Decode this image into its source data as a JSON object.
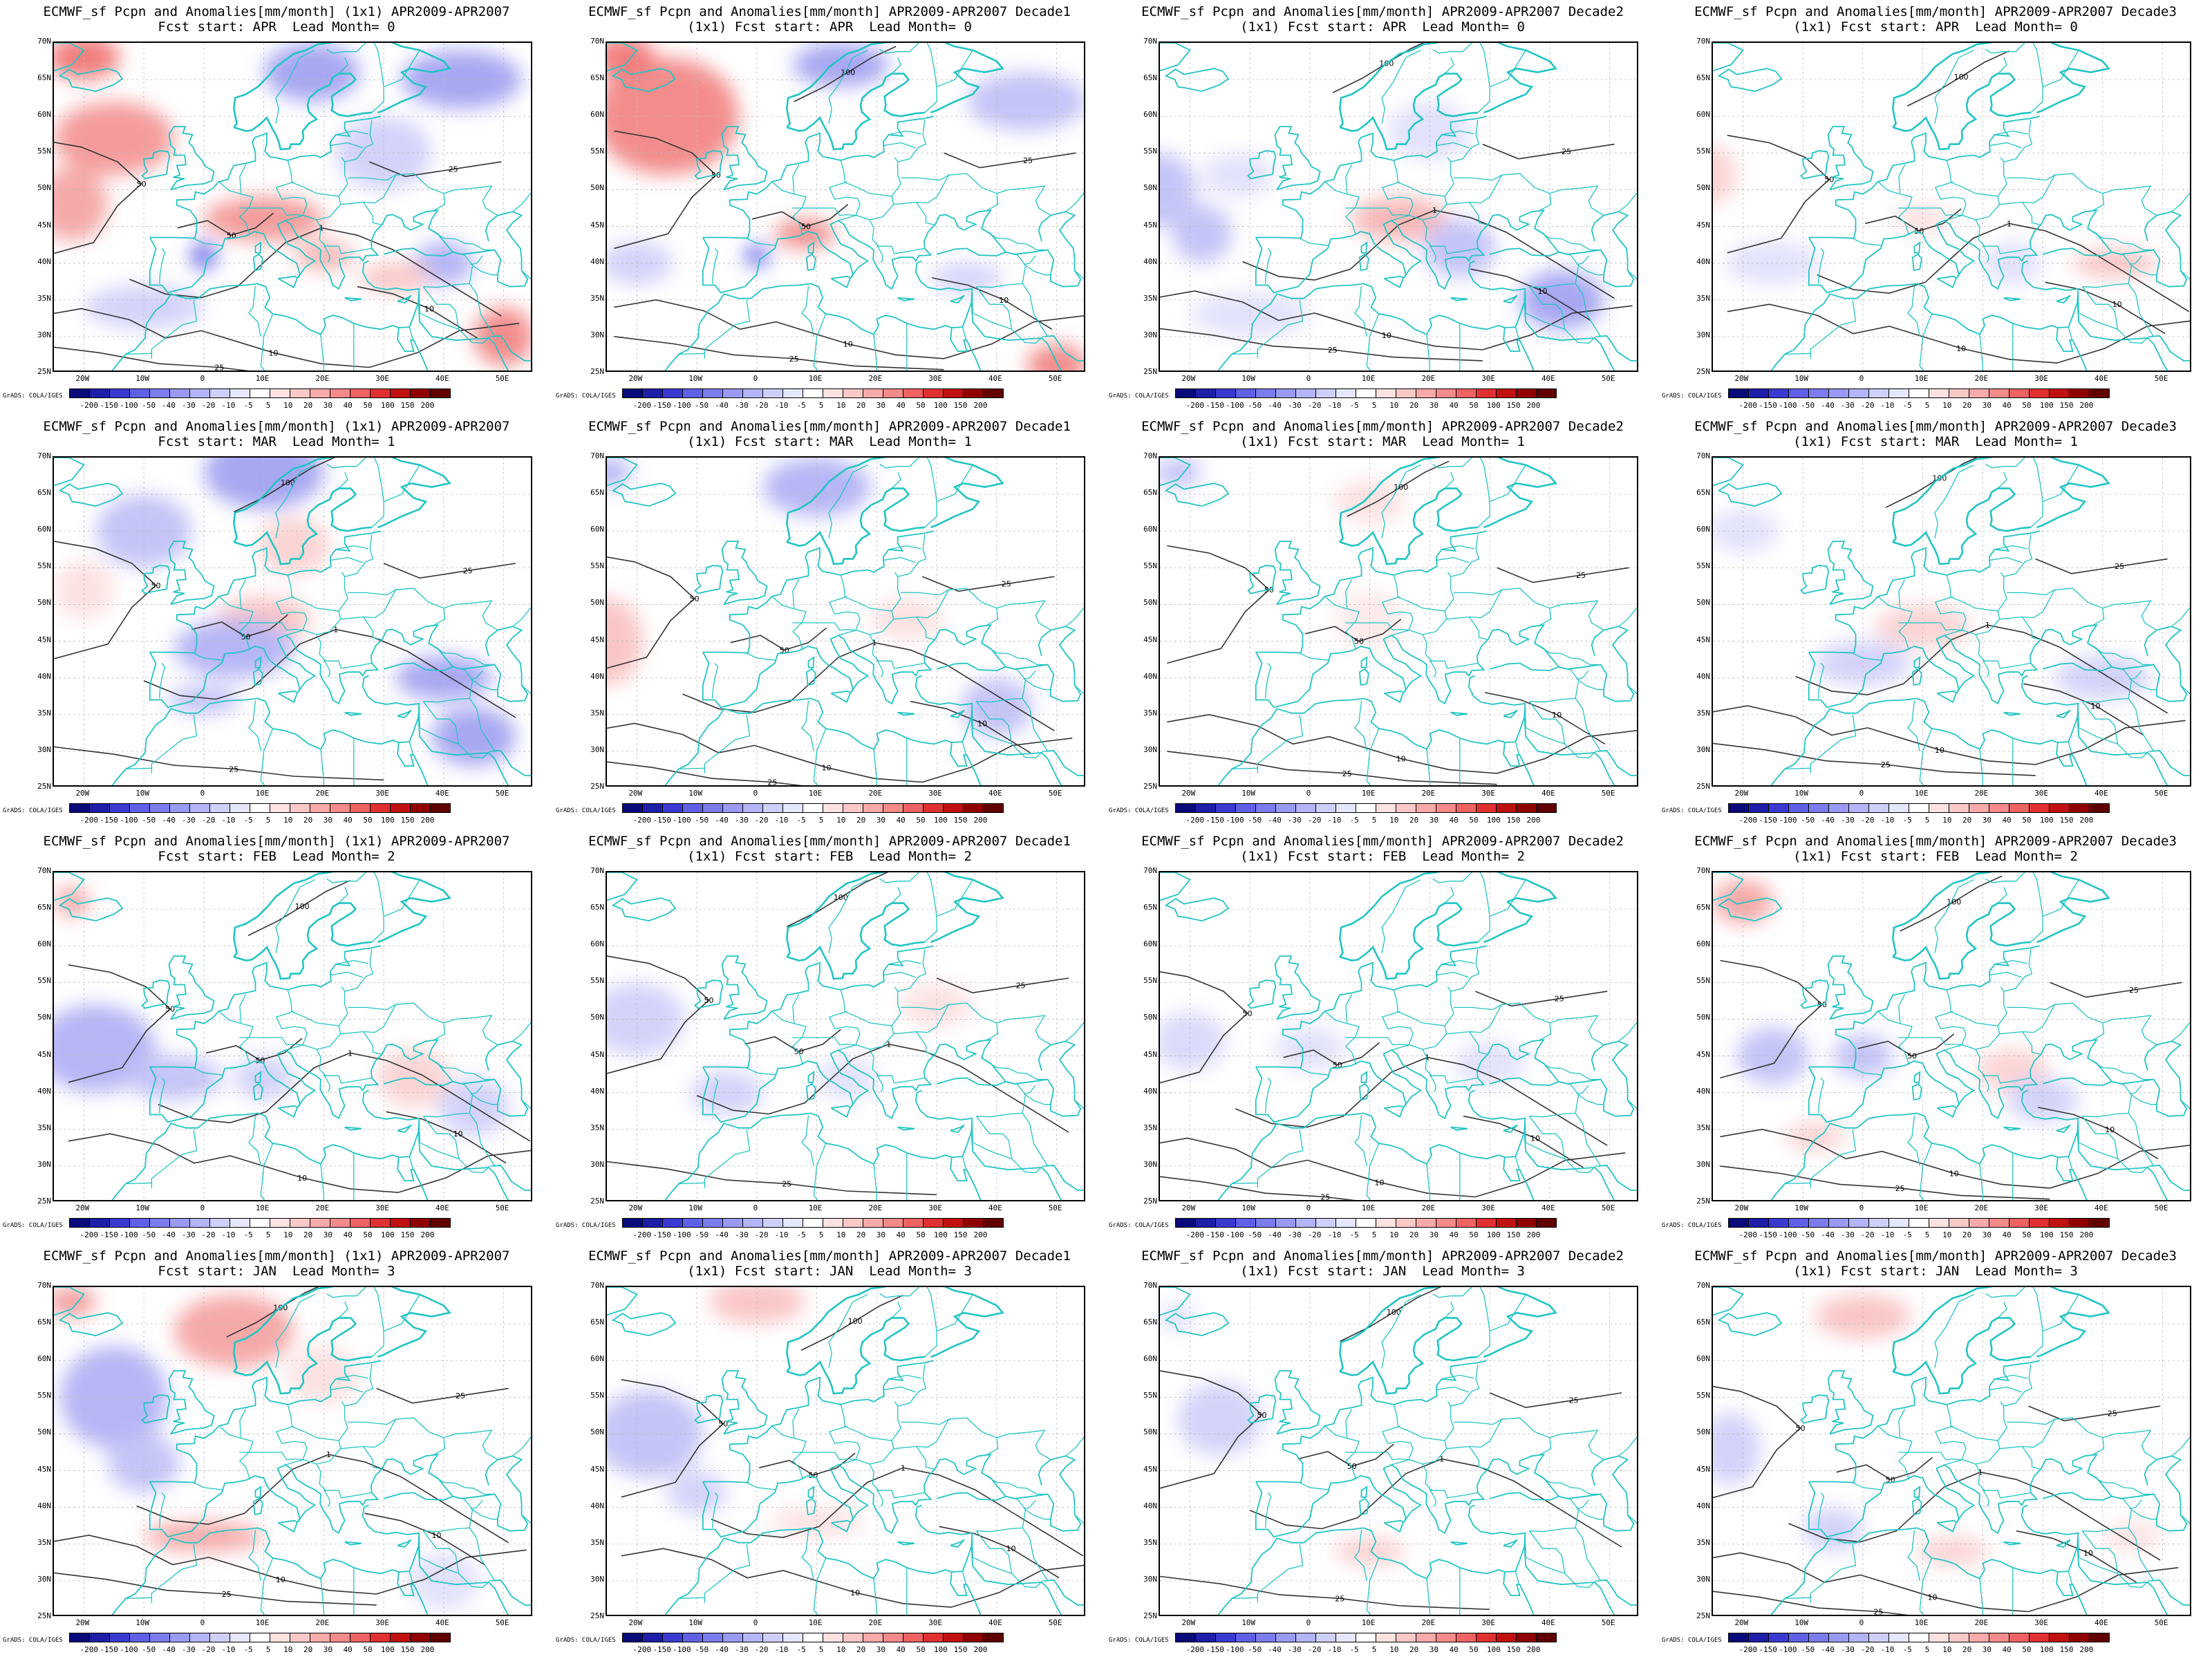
{
  "titles": [
    {
      "line1": "ECMWF_sf Pcpn and Anomalies[mm/month] (1x1) APR2009-APR2007",
      "line2": "Fcst start: APR  Lead Month= 0"
    },
    {
      "line1": "ECMWF_sf Pcpn and Anomalies[mm/month] APR2009-APR2007 Decade1",
      "line2": "(1x1) Fcst start: APR  Lead Month= 0"
    },
    {
      "line1": "ECMWF_sf Pcpn and Anomalies[mm/month] APR2009-APR2007 Decade2",
      "line2": "(1x1) Fcst start: APR  Lead Month= 0"
    },
    {
      "line1": "ECMWF_sf Pcpn and Anomalies[mm/month] APR2009-APR2007 Decade3",
      "line2": "(1x1) Fcst start: APR  Lead Month= 0"
    },
    {
      "line1": "ECMWF_sf Pcpn and Anomalies[mm/month] (1x1) APR2009-APR2007",
      "line2": "Fcst start: MAR  Lead Month= 1"
    },
    {
      "line1": "ECMWF_sf Pcpn and Anomalies[mm/month] APR2009-APR2007 Decade1",
      "line2": "(1x1) Fcst start: MAR  Lead Month= 1"
    },
    {
      "line1": "ECMWF_sf Pcpn and Anomalies[mm/month] APR2009-APR2007 Decade2",
      "line2": "(1x1) Fcst start: MAR  Lead Month= 1"
    },
    {
      "line1": "ECMWF_sf Pcpn and Anomalies[mm/month] APR2009-APR2007 Decade3",
      "line2": "(1x1) Fcst start: MAR  Lead Month= 1"
    },
    {
      "line1": "ECMWF_sf Pcpn and Anomalies[mm/month] (1x1) APR2009-APR2007",
      "line2": "Fcst start: FEB  Lead Month= 2"
    },
    {
      "line1": "ECMWF_sf Pcpn and Anomalies[mm/month] APR2009-APR2007 Decade1",
      "line2": "(1x1) Fcst start: FEB  Lead Month= 2"
    },
    {
      "line1": "ECMWF_sf Pcpn and Anomalies[mm/month] APR2009-APR2007 Decade2",
      "line2": "(1x1) Fcst start: FEB  Lead Month= 2"
    },
    {
      "line1": "ECMWF_sf Pcpn and Anomalies[mm/month] APR2009-APR2007 Decade3",
      "line2": "(1x1) Fcst start: FEB  Lead Month= 2"
    },
    {
      "line1": "ECMWF_sf Pcpn and Anomalies[mm/month] (1x1) APR2009-APR2007",
      "line2": "Fcst start: JAN  Lead Month= 3"
    },
    {
      "line1": "ECMWF_sf Pcpn and Anomalies[mm/month] APR2009-APR2007 Decade1",
      "line2": "(1x1) Fcst start: JAN  Lead Month= 3"
    },
    {
      "line1": "ECMWF_sf Pcpn and Anomalies[mm/month] APR2009-APR2007 Decade2",
      "line2": "(1x1) Fcst start: JAN  Lead Month= 3"
    },
    {
      "line1": "ECMWF_sf Pcpn and Anomalies[mm/month] APR2009-APR2007 Decade3",
      "line2": "(1x1) Fcst start: JAN  Lead Month= 3"
    }
  ],
  "lat_labels": [
    "70N",
    "65N",
    "60N",
    "55N",
    "50N",
    "45N",
    "40N",
    "35N",
    "30N",
    "25N"
  ],
  "lon_labels": [
    "20W",
    "10W",
    "0",
    "10E",
    "20E",
    "30E",
    "40E",
    "50E"
  ],
  "credit": "GrADS: COLA/IGES",
  "colorbar": {
    "labels": [
      "-200",
      "-150",
      "-100",
      "-50",
      "-40",
      "-30",
      "-20",
      "-10",
      "-5",
      "5",
      "10",
      "20",
      "30",
      "40",
      "50",
      "100",
      "150",
      "200"
    ],
    "colors": [
      "#0a0a7a",
      "#1e1ea8",
      "#3a3ad2",
      "#6060e6",
      "#7c7cee",
      "#9a9af4",
      "#b4b4f8",
      "#cfcffb",
      "#e6e6fd",
      "#ffffff",
      "#fde2e2",
      "#fbc8c8",
      "#f8aaaa",
      "#f48a8a",
      "#ee6262",
      "#e03030",
      "#c01010",
      "#900000",
      "#600000"
    ]
  },
  "colors": {
    "coastline": "#22c4c4",
    "contour": "#333333",
    "anomaly_positive": "#f07070",
    "anomaly_negative": "#6c6cea",
    "grid": "#bbbbbb"
  }
}
